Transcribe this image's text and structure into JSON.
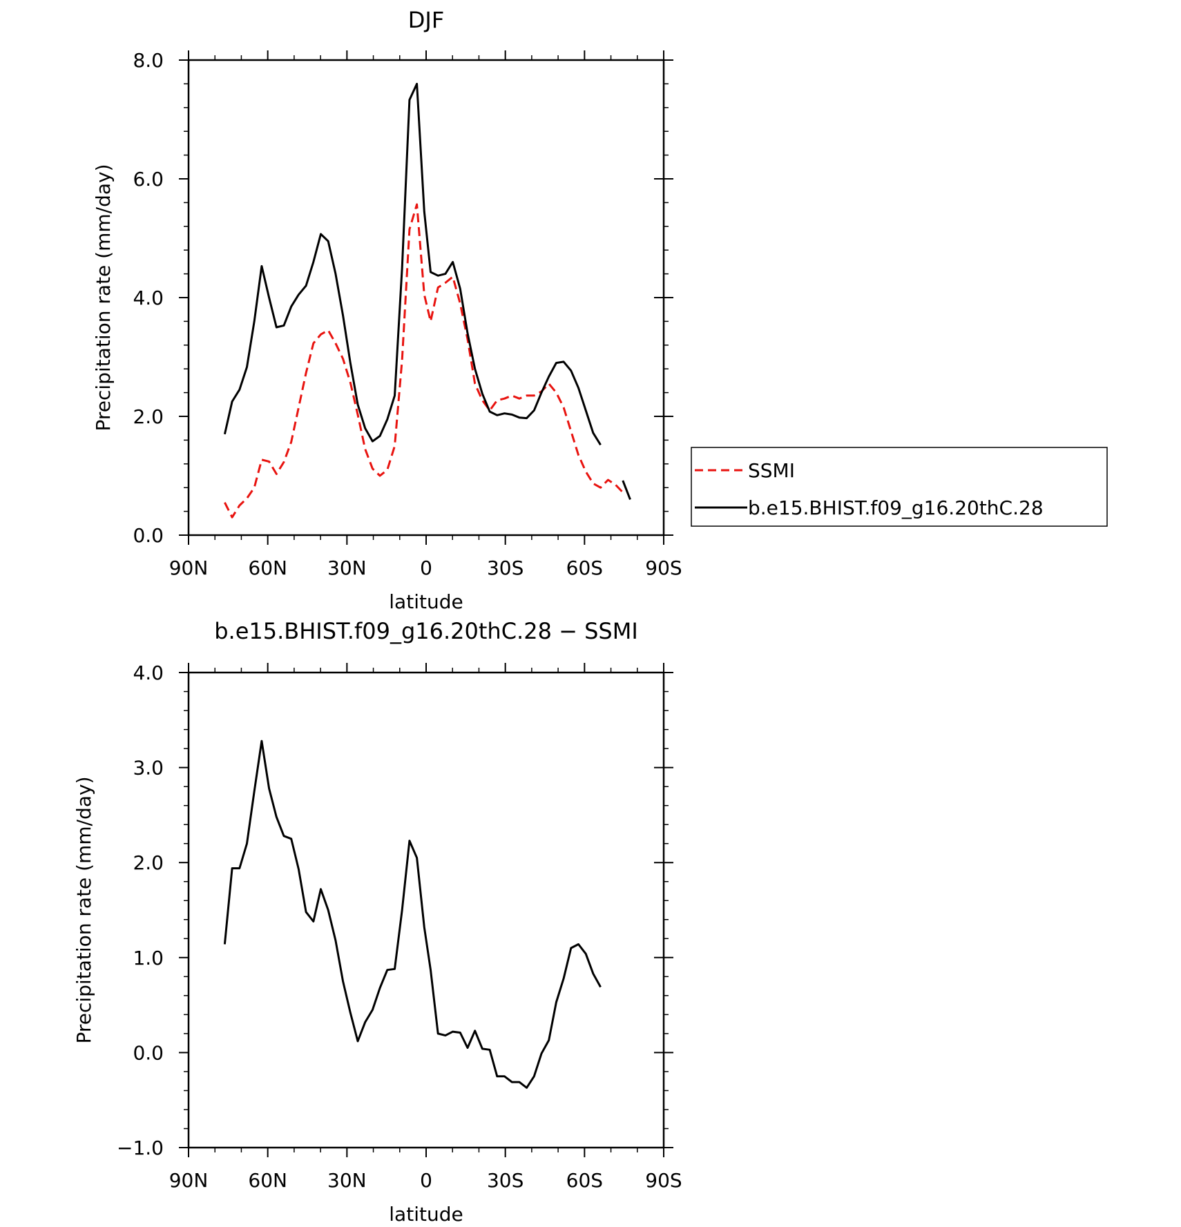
{
  "chart_data": [
    {
      "type": "line",
      "title": "DJF",
      "xlabel": "latitude",
      "ylabel": "Precipitation rate (mm/day)",
      "xlim": [
        90,
        -90
      ],
      "ylim": [
        0,
        8
      ],
      "x_ticks": [
        {
          "value": 90,
          "label": "90N"
        },
        {
          "value": 60,
          "label": "60N"
        },
        {
          "value": 30,
          "label": "30N"
        },
        {
          "value": 0,
          "label": "0"
        },
        {
          "value": -30,
          "label": "30S"
        },
        {
          "value": -60,
          "label": "60S"
        },
        {
          "value": -90,
          "label": "90S"
        }
      ],
      "y_ticks": [
        {
          "value": 0,
          "label": "0.0"
        },
        {
          "value": 2,
          "label": "2.0"
        },
        {
          "value": 4,
          "label": "4.0"
        },
        {
          "value": 6,
          "label": "6.0"
        },
        {
          "value": 8,
          "label": "8.0"
        }
      ],
      "legend": {
        "placement": "right"
      },
      "series": [
        {
          "name": "SSMI",
          "color": "#e8130f",
          "dash": true,
          "segments": [
            [
              [
                76.3,
                0.55
              ],
              [
                73.5,
                0.3
              ],
              [
                70.7,
                0.5
              ],
              [
                67.9,
                0.62
              ],
              [
                65.1,
                0.8
              ],
              [
                62.3,
                1.27
              ],
              [
                59.5,
                1.24
              ],
              [
                56.7,
                1.03
              ],
              [
                53.9,
                1.23
              ],
              [
                51.1,
                1.57
              ],
              [
                48.3,
                2.15
              ],
              [
                45.5,
                2.73
              ],
              [
                42.7,
                3.23
              ],
              [
                39.9,
                3.38
              ],
              [
                37.1,
                3.45
              ],
              [
                34.3,
                3.23
              ],
              [
                31.5,
                2.97
              ],
              [
                28.7,
                2.57
              ],
              [
                25.9,
                2.03
              ],
              [
                23.1,
                1.45
              ],
              [
                20.3,
                1.12
              ],
              [
                17.5,
                1.0
              ],
              [
                14.7,
                1.1
              ],
              [
                11.9,
                1.5
              ],
              [
                9.1,
                2.95
              ],
              [
                6.3,
                5.15
              ],
              [
                3.5,
                5.57
              ],
              [
                0.7,
                4.05
              ],
              [
                -1.7,
                3.6
              ],
              [
                -4.5,
                4.17
              ],
              [
                -7.3,
                4.25
              ],
              [
                -10.1,
                4.35
              ],
              [
                -12.9,
                3.9
              ],
              [
                -15.7,
                3.3
              ],
              [
                -18.5,
                2.55
              ],
              [
                -21.3,
                2.27
              ],
              [
                -24.1,
                2.1
              ],
              [
                -26.9,
                2.27
              ],
              [
                -29.7,
                2.3
              ],
              [
                -32.5,
                2.35
              ],
              [
                -35.3,
                2.3
              ],
              [
                -38.1,
                2.35
              ],
              [
                -40.9,
                2.35
              ],
              [
                -43.7,
                2.42
              ],
              [
                -46.5,
                2.55
              ],
              [
                -49.3,
                2.4
              ],
              [
                -52.1,
                2.15
              ],
              [
                -54.9,
                1.75
              ],
              [
                -57.7,
                1.35
              ],
              [
                -60.5,
                1.07
              ],
              [
                -63.3,
                0.87
              ],
              [
                -66.1,
                0.8
              ],
              [
                -68.9,
                0.93
              ],
              [
                -71.7,
                0.85
              ],
              [
                -74.5,
                0.72
              ]
            ]
          ]
        },
        {
          "name": "b.e15.BHIST.f09_g16.20thC.28",
          "color": "#000000",
          "dash": false,
          "segments": [
            [
              [
                76.3,
                1.7
              ],
              [
                73.5,
                2.25
              ],
              [
                70.7,
                2.45
              ],
              [
                67.9,
                2.83
              ],
              [
                65.1,
                3.6
              ],
              [
                62.3,
                4.53
              ],
              [
                59.5,
                4.0
              ],
              [
                56.7,
                3.5
              ],
              [
                53.9,
                3.53
              ],
              [
                51.1,
                3.85
              ],
              [
                48.3,
                4.05
              ],
              [
                45.5,
                4.2
              ],
              [
                42.7,
                4.6
              ],
              [
                39.9,
                5.07
              ],
              [
                37.1,
                4.95
              ],
              [
                34.3,
                4.4
              ],
              [
                31.5,
                3.7
              ],
              [
                28.7,
                2.9
              ],
              [
                25.9,
                2.2
              ],
              [
                23.1,
                1.8
              ],
              [
                20.3,
                1.58
              ],
              [
                17.5,
                1.67
              ],
              [
                14.7,
                1.95
              ],
              [
                11.9,
                2.35
              ],
              [
                9.1,
                4.5
              ],
              [
                6.3,
                7.33
              ],
              [
                3.5,
                7.6
              ],
              [
                0.7,
                5.45
              ],
              [
                -1.7,
                4.43
              ],
              [
                -4.5,
                4.37
              ],
              [
                -7.3,
                4.4
              ],
              [
                -10.1,
                4.6
              ],
              [
                -12.9,
                4.15
              ],
              [
                -15.7,
                3.4
              ],
              [
                -18.5,
                2.8
              ],
              [
                -21.3,
                2.38
              ],
              [
                -24.1,
                2.08
              ],
              [
                -26.9,
                2.02
              ],
              [
                -29.7,
                2.05
              ],
              [
                -32.5,
                2.03
              ],
              [
                -35.3,
                1.98
              ],
              [
                -38.1,
                1.97
              ],
              [
                -40.9,
                2.1
              ],
              [
                -43.7,
                2.4
              ],
              [
                -46.5,
                2.67
              ],
              [
                -49.3,
                2.9
              ],
              [
                -52.1,
                2.92
              ],
              [
                -54.9,
                2.77
              ],
              [
                -57.7,
                2.48
              ],
              [
                -60.5,
                2.1
              ],
              [
                -63.3,
                1.72
              ],
              [
                -66.1,
                1.52
              ]
            ],
            [
              [
                -74.5,
                0.92
              ],
              [
                -77.3,
                0.6
              ]
            ]
          ]
        }
      ]
    },
    {
      "type": "line",
      "title": "b.e15.BHIST.f09_g16.20thC.28 − SSMI",
      "xlabel": "latitude",
      "ylabel": "Precipitation rate (mm/day)",
      "xlim": [
        90,
        -90
      ],
      "ylim": [
        -1,
        4
      ],
      "x_ticks": [
        {
          "value": 90,
          "label": "90N"
        },
        {
          "value": 60,
          "label": "60N"
        },
        {
          "value": 30,
          "label": "30N"
        },
        {
          "value": 0,
          "label": "0"
        },
        {
          "value": -30,
          "label": "30S"
        },
        {
          "value": -60,
          "label": "60S"
        },
        {
          "value": -90,
          "label": "90S"
        }
      ],
      "y_ticks": [
        {
          "value": -1,
          "label": "−1.0"
        },
        {
          "value": 0,
          "label": "0.0"
        },
        {
          "value": 1,
          "label": "1.0"
        },
        {
          "value": 2,
          "label": "2.0"
        },
        {
          "value": 3,
          "label": "3.0"
        },
        {
          "value": 4,
          "label": "4.0"
        }
      ],
      "series": [
        {
          "color": "#000000",
          "dash": false,
          "segments": [
            [
              [
                76.3,
                1.14
              ],
              [
                73.5,
                1.94
              ],
              [
                70.7,
                1.94
              ],
              [
                67.9,
                2.2
              ],
              [
                65.1,
                2.75
              ],
              [
                62.3,
                3.28
              ],
              [
                59.5,
                2.78
              ],
              [
                56.7,
                2.48
              ],
              [
                53.9,
                2.28
              ],
              [
                51.1,
                2.25
              ],
              [
                48.3,
                1.93
              ],
              [
                45.5,
                1.48
              ],
              [
                42.7,
                1.38
              ],
              [
                39.9,
                1.72
              ],
              [
                37.1,
                1.5
              ],
              [
                34.3,
                1.18
              ],
              [
                31.5,
                0.75
              ],
              [
                28.7,
                0.42
              ],
              [
                25.9,
                0.12
              ],
              [
                23.1,
                0.32
              ],
              [
                20.3,
                0.45
              ],
              [
                17.5,
                0.68
              ],
              [
                14.7,
                0.87
              ],
              [
                11.9,
                0.88
              ],
              [
                9.1,
                1.5
              ],
              [
                6.3,
                2.23
              ],
              [
                3.5,
                2.05
              ],
              [
                0.7,
                1.32
              ],
              [
                -1.7,
                0.87
              ],
              [
                -4.5,
                0.2
              ],
              [
                -7.3,
                0.18
              ],
              [
                -10.1,
                0.22
              ],
              [
                -12.9,
                0.21
              ],
              [
                -15.7,
                0.05
              ],
              [
                -18.5,
                0.23
              ],
              [
                -21.3,
                0.04
              ],
              [
                -24.1,
                0.03
              ],
              [
                -26.9,
                -0.25
              ],
              [
                -29.7,
                -0.25
              ],
              [
                -32.5,
                -0.31
              ],
              [
                -35.3,
                -0.31
              ],
              [
                -38.1,
                -0.37
              ],
              [
                -40.9,
                -0.25
              ],
              [
                -43.7,
                -0.01
              ],
              [
                -46.5,
                0.13
              ],
              [
                -49.3,
                0.53
              ],
              [
                -52.1,
                0.78
              ],
              [
                -54.9,
                1.1
              ],
              [
                -57.7,
                1.14
              ],
              [
                -60.5,
                1.04
              ],
              [
                -63.3,
                0.83
              ],
              [
                -66.1,
                0.69
              ]
            ]
          ]
        }
      ]
    }
  ]
}
